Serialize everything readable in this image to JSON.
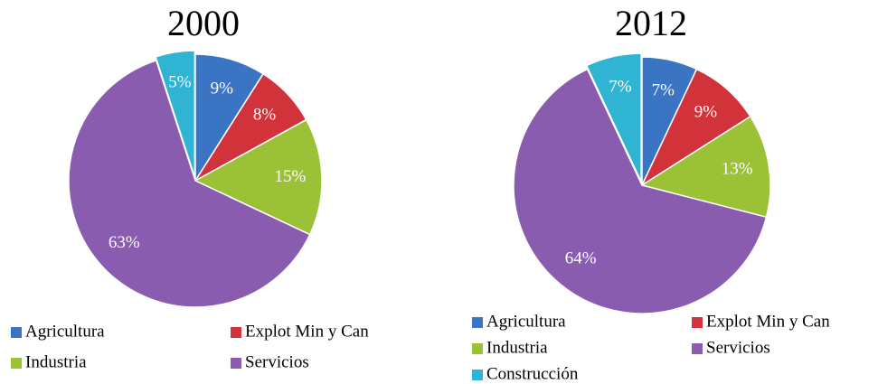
{
  "chart_data": [
    {
      "type": "pie",
      "title": "2000",
      "categories": [
        "Agricultura",
        "Explot Min y Can",
        "Industria",
        "Servicios",
        null
      ],
      "values": [
        9,
        8,
        15,
        63,
        5
      ],
      "value_labels": [
        "9%",
        "8%",
        "15%",
        "63%",
        "5%"
      ],
      "colors": [
        "#3b74c2",
        "#d2333a",
        "#9bc136",
        "#8a5cb0",
        "#2fb4d4"
      ]
    },
    {
      "type": "pie",
      "title": "2012",
      "categories": [
        "Agricultura",
        "Explot Min y Can",
        "Industria",
        "Servicios",
        "Construcción"
      ],
      "values": [
        7,
        9,
        13,
        64,
        7
      ],
      "value_labels": [
        "7%",
        "9%",
        "13%",
        "64%",
        "7%"
      ],
      "colors": [
        "#3b74c2",
        "#d2333a",
        "#9bc136",
        "#8a5cb0",
        "#2fb4d4"
      ]
    }
  ]
}
